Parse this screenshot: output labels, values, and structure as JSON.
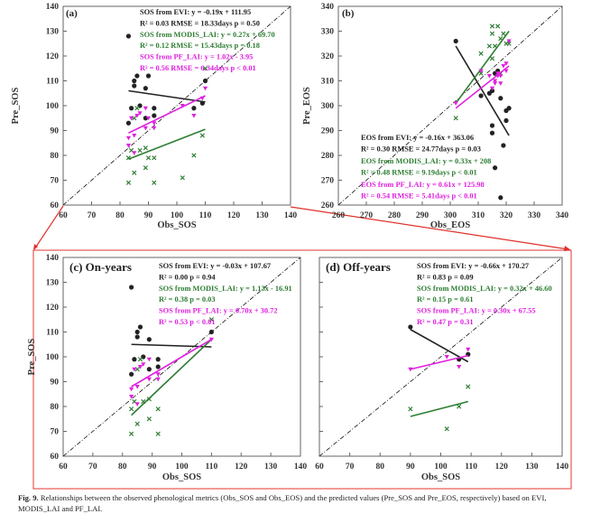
{
  "colors": {
    "evi": "#222222",
    "modis": "#2e7d32",
    "pf": "#e020e0",
    "highlight_box": "#e0302a",
    "one_to_one": "#111111"
  },
  "caption": {
    "label": "Fig. 9.",
    "text": "Relationships between the observed phenological metrics (Obs_SOS and Obs_EOS) and the predicted values (Pre_SOS and Pre_EOS, respectively) based on EVI, MODIS_LAI and PF_LAI."
  },
  "chart_data": [
    {
      "type": "scatter",
      "panel_label": "(a)",
      "xlabel": "Obs_SOS",
      "ylabel": "Pre_SOS",
      "xlim": [
        60,
        140
      ],
      "ylim": [
        60,
        140
      ],
      "xticks": [
        60,
        70,
        80,
        90,
        100,
        110,
        120,
        130,
        140
      ],
      "yticks": [
        60,
        70,
        80,
        90,
        100,
        110,
        120,
        130,
        140
      ],
      "one_to_one_line": true,
      "annotations": [
        {
          "text": "SOS from EVI:  y = -0.19x + 111.95",
          "series": "evi"
        },
        {
          "text": "R² = 0.03  RMSE = 18.33days  p = 0.50",
          "series": "evi"
        },
        {
          "text": "SOS from MODIS_LAI:  y = 0.27x + 69.70",
          "series": "modis"
        },
        {
          "text": "R² = 0.12  RMSE = 15.43days  p = 0.18",
          "series": "modis"
        },
        {
          "text": "SOS from PF_LAI:  y = 1.02x - 3.95",
          "series": "pf"
        },
        {
          "text": "R² = 0.56  RMSE = 6.34days  p < 0.01",
          "series": "pf"
        }
      ],
      "series": [
        {
          "name": "EVI",
          "key": "evi",
          "marker": "circle",
          "points": [
            [
              83,
              128
            ],
            [
              84,
              99
            ],
            [
              85,
              110
            ],
            [
              85,
              108
            ],
            [
              86,
              112
            ],
            [
              87,
              100
            ],
            [
              89,
              107
            ],
            [
              90,
              112
            ],
            [
              89,
              95
            ],
            [
              92,
              99
            ],
            [
              92,
              96
            ],
            [
              83,
              93
            ],
            [
              106,
              99
            ],
            [
              109,
              101
            ],
            [
              110,
              110
            ]
          ],
          "fit": [
            [
              83,
              106
            ],
            [
              110,
              101.5
            ]
          ]
        },
        {
          "name": "MODIS_LAI",
          "key": "modis",
          "marker": "x",
          "points": [
            [
              83,
              69
            ],
            [
              83,
              79
            ],
            [
              84,
              82
            ],
            [
              85,
              73
            ],
            [
              85,
              95
            ],
            [
              86,
              99
            ],
            [
              87,
              82
            ],
            [
              89,
              83
            ],
            [
              89,
              75
            ],
            [
              90,
              79
            ],
            [
              92,
              79
            ],
            [
              92,
              69
            ],
            [
              102,
              71
            ],
            [
              106,
              80
            ],
            [
              109,
              88
            ],
            [
              110,
              115
            ]
          ],
          "fit": [
            [
              83,
              78.5
            ],
            [
              110,
              90.5
            ]
          ]
        },
        {
          "name": "PF_LAI",
          "key": "pf",
          "marker": "triangle",
          "points": [
            [
              83,
              87
            ],
            [
              83,
              84
            ],
            [
              84,
              95
            ],
            [
              85,
              88
            ],
            [
              85,
              81
            ],
            [
              86,
              96
            ],
            [
              87,
              97
            ],
            [
              89,
              99
            ],
            [
              89,
              91
            ],
            [
              90,
              95
            ],
            [
              92,
              91
            ],
            [
              92,
              93
            ],
            [
              102,
              100
            ],
            [
              106,
              96
            ],
            [
              109,
              103
            ],
            [
              110,
              107
            ]
          ],
          "fit": [
            [
              83,
              89
            ],
            [
              110,
              104
            ]
          ]
        }
      ]
    },
    {
      "type": "scatter",
      "panel_label": "(b)",
      "xlabel": "Obs_EOS",
      "ylabel": "Pre_EOS",
      "xlim": [
        260,
        340
      ],
      "ylim": [
        260,
        340
      ],
      "xticks": [
        260,
        270,
        280,
        290,
        300,
        310,
        320,
        330,
        340
      ],
      "yticks": [
        260,
        270,
        280,
        290,
        300,
        310,
        320,
        330,
        340
      ],
      "one_to_one_line": true,
      "annotations": [
        {
          "text": "EOS from EVI:  y = -0.16x + 363.06",
          "series": "evi"
        },
        {
          "text": "R² = 0.30  RMSE = 24.77days  p = 0.03",
          "series": "evi"
        },
        {
          "text": "EOS from MODIS_LAI:  y = 0.33x + 208",
          "series": "modis"
        },
        {
          "text": "R² = 0.48  RMSE = 9.19days  p < 0.01",
          "series": "modis"
        },
        {
          "text": "EOS from PF_LAI:  y = 0.61x + 125.98",
          "series": "pf"
        },
        {
          "text": "R² = 0.54  RMSE = 5.41days  p < 0.01",
          "series": "pf"
        }
      ],
      "series": [
        {
          "name": "EVI",
          "key": "evi",
          "marker": "circle",
          "points": [
            [
              302,
              326
            ],
            [
              311,
              304
            ],
            [
              314,
              305
            ],
            [
              315,
              306
            ],
            [
              315,
              292
            ],
            [
              315,
              289
            ],
            [
              316,
              275
            ],
            [
              316,
              313
            ],
            [
              317,
              314
            ],
            [
              318,
              303
            ],
            [
              319,
              284
            ],
            [
              318,
              263
            ],
            [
              320,
              298
            ],
            [
              320,
              294
            ],
            [
              321,
              299
            ]
          ],
          "fit": [
            [
              302,
              324
            ],
            [
              321,
              288
            ]
          ]
        },
        {
          "name": "MODIS_LAI",
          "key": "modis",
          "marker": "x",
          "points": [
            [
              302,
              295
            ],
            [
              311,
              321
            ],
            [
              311,
              313
            ],
            [
              314,
              324
            ],
            [
              315,
              332
            ],
            [
              315,
              329
            ],
            [
              315,
              319
            ],
            [
              316,
              324
            ],
            [
              317,
              332
            ],
            [
              318,
              327
            ],
            [
              319,
              329
            ],
            [
              320,
              325
            ],
            [
              321,
              325
            ],
            [
              318,
              313
            ]
          ],
          "fit": [
            [
              302,
              301
            ],
            [
              321,
              330
            ]
          ]
        },
        {
          "name": "PF_LAI",
          "key": "pf",
          "marker": "triangle",
          "points": [
            [
              302,
              301
            ],
            [
              311,
              314
            ],
            [
              314,
              312
            ],
            [
              315,
              307
            ],
            [
              316,
              310
            ],
            [
              316,
              309
            ],
            [
              317,
              312
            ],
            [
              318,
              309
            ],
            [
              318,
              312
            ],
            [
              319,
              316
            ],
            [
              320,
              317
            ],
            [
              320,
              314
            ],
            [
              321,
              326
            ],
            [
              317,
              313
            ]
          ],
          "fit": [
            [
              302,
              299
            ],
            [
              321,
              316
            ]
          ]
        }
      ]
    },
    {
      "type": "scatter",
      "panel_label": "(c) On-years",
      "xlabel": "Obs_SOS",
      "ylabel": "Pre_SOS",
      "xlim": [
        60,
        140
      ],
      "ylim": [
        60,
        140
      ],
      "xticks": [
        60,
        70,
        80,
        90,
        100,
        110,
        120,
        130,
        140
      ],
      "yticks": [
        60,
        70,
        80,
        90,
        100,
        110,
        120,
        130,
        140
      ],
      "one_to_one_line": true,
      "annotations": [
        {
          "text": "SOS from EVI:  y = -0.03x + 107.67",
          "series": "evi"
        },
        {
          "text": "R² = 0.00  p = 0.94",
          "series": "evi"
        },
        {
          "text": "SOS from MODIS_LAI:  y = 1.13x - 16.91",
          "series": "modis"
        },
        {
          "text": "R² = 0.38  p = 0.03",
          "series": "modis"
        },
        {
          "text": "SOS from PF_LAI:  y = 0.70x + 30.72",
          "series": "pf"
        },
        {
          "text": "R² = 0.53  p < 0.01",
          "series": "pf"
        }
      ],
      "series": [
        {
          "name": "EVI",
          "key": "evi",
          "marker": "circle",
          "points": [
            [
              83,
              128
            ],
            [
              84,
              99
            ],
            [
              85,
              110
            ],
            [
              85,
              108
            ],
            [
              86,
              112
            ],
            [
              87,
              100
            ],
            [
              89,
              107
            ],
            [
              89,
              95
            ],
            [
              92,
              99
            ],
            [
              92,
              96
            ],
            [
              83,
              93
            ],
            [
              110,
              110
            ]
          ],
          "fit": [
            [
              83,
              105
            ],
            [
              110,
              104
            ]
          ]
        },
        {
          "name": "MODIS_LAI",
          "key": "modis",
          "marker": "x",
          "points": [
            [
              83,
              69
            ],
            [
              83,
              79
            ],
            [
              84,
              82
            ],
            [
              85,
              73
            ],
            [
              85,
              95
            ],
            [
              86,
              99
            ],
            [
              87,
              82
            ],
            [
              89,
              83
            ],
            [
              89,
              75
            ],
            [
              92,
              79
            ],
            [
              92,
              69
            ],
            [
              110,
              115
            ]
          ],
          "fit": [
            [
              83,
              76.5
            ],
            [
              110,
              107
            ]
          ]
        },
        {
          "name": "PF_LAI",
          "key": "pf",
          "marker": "triangle",
          "points": [
            [
              83,
              87
            ],
            [
              83,
              84
            ],
            [
              84,
              95
            ],
            [
              85,
              88
            ],
            [
              85,
              81
            ],
            [
              86,
              96
            ],
            [
              87,
              97
            ],
            [
              89,
              99
            ],
            [
              89,
              91
            ],
            [
              92,
              91
            ],
            [
              92,
              93
            ],
            [
              110,
              107
            ]
          ],
          "fit": [
            [
              83,
              88
            ],
            [
              110,
              107
            ]
          ]
        }
      ]
    },
    {
      "type": "scatter",
      "panel_label": "(d) Off-years",
      "xlabel": "Obs_SOS",
      "ylabel": "",
      "xlim": [
        60,
        140
      ],
      "ylim": [
        60,
        140
      ],
      "xticks": [
        60,
        70,
        80,
        90,
        100,
        110,
        120,
        130,
        140
      ],
      "yticks": [],
      "one_to_one_line": true,
      "annotations": [
        {
          "text": "SOS from EVI:  y = -0.66x + 170.27",
          "series": "evi"
        },
        {
          "text": "R² = 0.83  p = 0.09",
          "series": "evi"
        },
        {
          "text": "SOS from MODIS_LAI:  y = 0.32x + 46.60",
          "series": "modis"
        },
        {
          "text": "R² = 0.15  p = 0.61",
          "series": "modis"
        },
        {
          "text": "SOS from PF_LAI:  y = 0.30x + 67.55",
          "series": "pf"
        },
        {
          "text": "R² = 0.47  p = 0.31",
          "series": "pf"
        }
      ],
      "series": [
        {
          "name": "EVI",
          "key": "evi",
          "marker": "circle",
          "points": [
            [
              90,
              112
            ],
            [
              106,
              99
            ],
            [
              109,
              101
            ]
          ],
          "fit": [
            [
              90,
              111
            ],
            [
              109,
              98
            ]
          ]
        },
        {
          "name": "MODIS_LAI",
          "key": "modis",
          "marker": "x",
          "points": [
            [
              90,
              79
            ],
            [
              102,
              71
            ],
            [
              106,
              80
            ],
            [
              109,
              88
            ]
          ],
          "fit": [
            [
              90,
              76
            ],
            [
              109,
              82
            ]
          ]
        },
        {
          "name": "PF_LAI",
          "key": "pf",
          "marker": "triangle",
          "points": [
            [
              90,
              95
            ],
            [
              102,
              100
            ],
            [
              106,
              96
            ],
            [
              109,
              103
            ]
          ],
          "fit": [
            [
              90,
              95
            ],
            [
              109,
              100.5
            ]
          ]
        }
      ]
    }
  ]
}
